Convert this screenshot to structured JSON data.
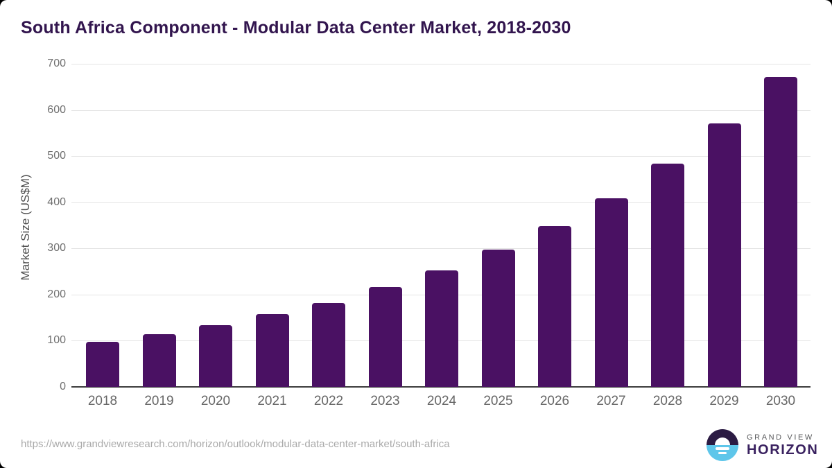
{
  "title": "South Africa Component - Modular Data Center Market, 2018-2030",
  "chart_data": {
    "type": "bar",
    "title": "South Africa Component - Modular Data Center Market, 2018-2030",
    "categories": [
      "2018",
      "2019",
      "2020",
      "2021",
      "2022",
      "2023",
      "2024",
      "2025",
      "2026",
      "2027",
      "2028",
      "2029",
      "2030"
    ],
    "values": [
      97,
      114,
      134,
      157,
      182,
      216,
      253,
      297,
      348,
      409,
      483,
      571,
      672
    ],
    "xlabel": "",
    "ylabel": "Market Size (US$M)",
    "ylim": [
      0,
      700
    ],
    "yticks": [
      0,
      100,
      200,
      300,
      400,
      500,
      600,
      700
    ],
    "grid": "horizontal",
    "legend": "none",
    "bar_color": "#4a1163"
  },
  "footer": {
    "source_url": "https://www.grandviewresearch.com/horizon/outlook/modular-data-center-market/south-africa",
    "brand_line1": "GRAND VIEW",
    "brand_line2": "HORIZON"
  },
  "colors": {
    "bar": "#4a1163",
    "title_text": "#32154e",
    "logo_dark": "#2b1b43",
    "logo_blue": "#5ec6ea",
    "gridline": "#e4e4e4",
    "axis_line": "#3d3d3d"
  }
}
